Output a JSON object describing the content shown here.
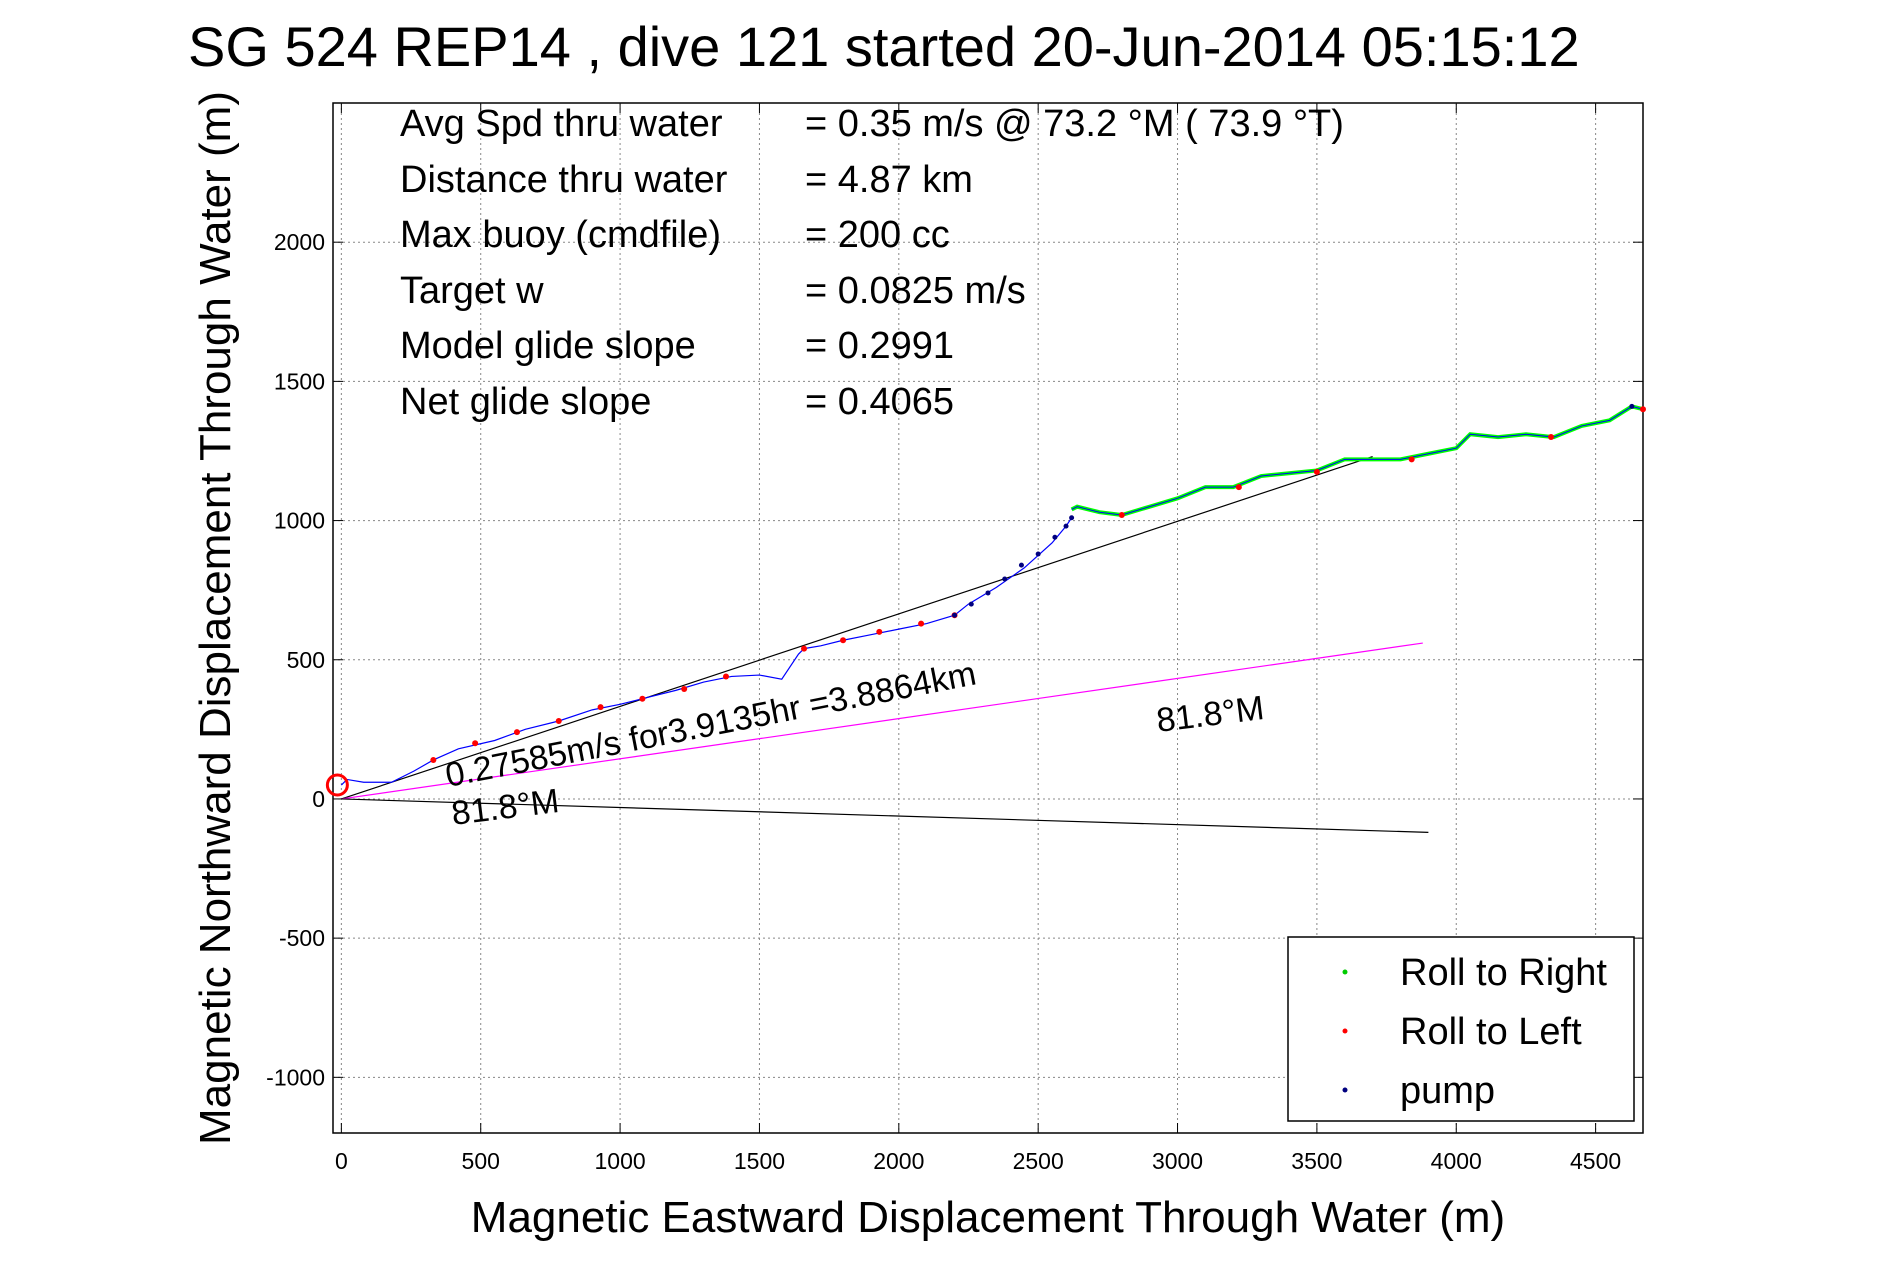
{
  "colors": {
    "roll_right": "#00cc00",
    "roll_left": "#ff0000",
    "pump": "#00007f",
    "track": "#0000ff",
    "current": "#ff00ff",
    "lines": "#000000",
    "green_segment": "#00ff00"
  },
  "chart_data": {
    "type": "line",
    "title": "SG 524   REP14  , dive 121 started 20-Jun-2014 05:15:12",
    "xlabel": "Magnetic Eastward Displacement Through Water (m)",
    "ylabel": "Magnetic Northward Displacement Through Water (m)",
    "xlim": [
      -30,
      4670
    ],
    "ylim": [
      -1200,
      2500
    ],
    "xticks": [
      "0",
      "500",
      "1000",
      "1500",
      "2000",
      "2500",
      "3000",
      "3500",
      "4000",
      "4500"
    ],
    "xtick_values": [
      0,
      500,
      1000,
      1500,
      2000,
      2500,
      3000,
      3500,
      4000,
      4500
    ],
    "yticks": [
      "-1000",
      "-500",
      "0",
      "500",
      "1000",
      "1500",
      "2000"
    ],
    "ytick_values": [
      -1000,
      -500,
      0,
      500,
      1000,
      1500,
      2000
    ],
    "grid": true,
    "legend_position": "bottom-right",
    "legend": [
      "Roll to Right",
      "Roll to Left",
      "pump"
    ],
    "stats": [
      {
        "label": "Avg Spd thru water",
        "value": "=  0.35 m/s @  73.2 °M ( 73.9 °T)"
      },
      {
        "label": "Distance thru water",
        "value": "=  4.87 km"
      },
      {
        "label": "Max buoy (cmdfile)",
        "value": "= 200 cc"
      },
      {
        "label": "Target w",
        "value": "= 0.0825 m/s"
      },
      {
        "label": "Model glide slope",
        "value": "= 0.2991"
      },
      {
        "label": "Net glide slope",
        "value": "= 0.4065"
      }
    ],
    "annotations": {
      "current": "0.27585m/s for3.9135hr =3.8864km",
      "heading_start": "81.8°M",
      "heading_end": "81.8°M"
    },
    "series": [
      {
        "name": "dive track",
        "x": [
          0,
          20,
          80,
          180,
          260,
          330,
          420,
          550,
          660,
          780,
          900,
          1000,
          1100,
          1200,
          1300,
          1400,
          1500,
          1580,
          1640,
          1660,
          1720,
          1800,
          1900,
          2000,
          2100,
          2200,
          2250,
          2350,
          2450,
          2550,
          2600,
          2620
        ],
        "y": [
          50,
          70,
          60,
          60,
          100,
          140,
          180,
          210,
          250,
          280,
          320,
          340,
          365,
          390,
          420,
          440,
          445,
          430,
          520,
          540,
          550,
          570,
          590,
          610,
          630,
          660,
          700,
          760,
          830,
          920,
          980,
          1010
        ]
      },
      {
        "name": "climb track",
        "x": [
          2620,
          2640,
          2680,
          2720,
          2800,
          2900,
          3000,
          3100,
          3200,
          3300,
          3400,
          3500,
          3600,
          3700,
          3800,
          3900,
          4000,
          4050,
          4150,
          4250,
          4350,
          4450,
          4550,
          4630,
          4670
        ],
        "y": [
          1040,
          1050,
          1040,
          1030,
          1020,
          1050,
          1080,
          1120,
          1120,
          1160,
          1170,
          1180,
          1220,
          1220,
          1220,
          1240,
          1260,
          1310,
          1300,
          1310,
          1300,
          1340,
          1360,
          1410,
          1400
        ]
      },
      {
        "name": "Roll to Left",
        "x": [
          330,
          480,
          630,
          780,
          930,
          1080,
          1230,
          1380,
          1660,
          1800,
          1930,
          2080,
          2200,
          2800,
          3220,
          3500,
          3840,
          4340,
          4670
        ],
        "y": [
          140,
          200,
          240,
          280,
          330,
          360,
          395,
          440,
          540,
          570,
          600,
          630,
          660,
          1020,
          1120,
          1175,
          1220,
          1300,
          1400
        ]
      },
      {
        "name": "pump",
        "x": [
          2200,
          2260,
          2320,
          2380,
          2440,
          2500,
          2560,
          2600,
          2620,
          4630
        ],
        "y": [
          660,
          700,
          740,
          790,
          840,
          880,
          940,
          980,
          1010,
          1410
        ]
      },
      {
        "name": "glide line",
        "x": [
          0,
          3700
        ],
        "y": [
          0,
          1230
        ]
      },
      {
        "name": "current line",
        "x": [
          0,
          3880
        ],
        "y": [
          0,
          560
        ]
      },
      {
        "name": "heading line",
        "x": [
          0,
          3900
        ],
        "y": [
          0,
          -120
        ]
      }
    ]
  }
}
